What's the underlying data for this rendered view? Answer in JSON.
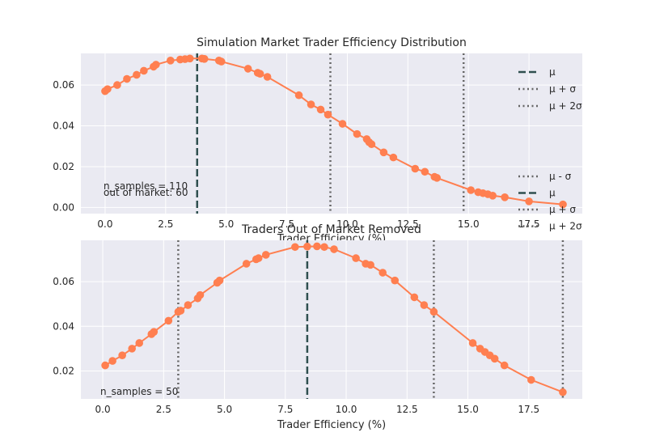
{
  "chart_data": [
    {
      "type": "line",
      "title": "Simulation Market Trader Efficiency Distribution",
      "xlabel": "Trader Efficiency (%)",
      "ylabel": "",
      "xlim": [
        -1.0,
        19.7
      ],
      "ylim": [
        -0.003,
        0.0755
      ],
      "xticks": [
        "0.0",
        "2.5",
        "5.0",
        "7.5",
        "10.0",
        "12.5",
        "15.0",
        "17.5"
      ],
      "xtick_values": [
        0,
        2.5,
        5,
        7.5,
        10,
        12.5,
        15,
        17.5
      ],
      "yticks": [
        "0.00",
        "0.02",
        "0.04",
        "0.06"
      ],
      "ytick_values": [
        0,
        0.02,
        0.04,
        0.06
      ],
      "grid": true,
      "line_color": "#ff7f50",
      "series": [
        {
          "x": [
            0.0,
            0.1,
            0.5,
            0.9,
            1.3,
            1.6,
            2.0,
            2.1,
            2.7,
            3.1,
            3.3,
            3.5,
            4.0,
            4.1,
            4.7,
            4.8,
            5.9,
            6.3,
            6.4,
            6.7,
            8.0,
            8.5,
            8.9,
            9.2,
            9.8,
            10.4,
            10.8,
            10.9,
            11.0,
            11.5,
            11.9,
            12.8,
            13.2,
            13.6,
            13.7,
            15.1,
            15.4,
            15.6,
            15.8,
            16.0,
            16.5,
            17.5,
            18.9
          ],
          "y": [
            0.057,
            0.058,
            0.06,
            0.063,
            0.065,
            0.067,
            0.069,
            0.07,
            0.072,
            0.0725,
            0.0727,
            0.073,
            0.073,
            0.0728,
            0.072,
            0.0715,
            0.068,
            0.066,
            0.0655,
            0.064,
            0.055,
            0.0505,
            0.048,
            0.0455,
            0.041,
            0.036,
            0.0335,
            0.032,
            0.031,
            0.027,
            0.0245,
            0.019,
            0.0175,
            0.015,
            0.0145,
            0.0085,
            0.0075,
            0.007,
            0.0065,
            0.0058,
            0.005,
            0.003,
            0.0015
          ]
        }
      ],
      "vlines": [
        {
          "x": 3.8,
          "style": "dashed",
          "color": "#2f4f4f"
        },
        {
          "x": 9.3,
          "style": "dotted",
          "color": "#666666"
        },
        {
          "x": 14.8,
          "style": "dotted",
          "color": "#666666"
        }
      ],
      "legend_placement": "right",
      "legend": [
        {
          "label": "μ",
          "style": "dashed",
          "color": "#2f4f4f"
        },
        {
          "label": "μ + σ",
          "style": "dotted",
          "color": "#666666"
        },
        {
          "label": "μ + 2σ",
          "style": "dotted",
          "color": "#666666"
        }
      ],
      "legend2": [
        {
          "label": "μ - σ",
          "style": "dotted",
          "color": "#666666"
        },
        {
          "label": "μ",
          "style": "dashed",
          "color": "#2f4f4f"
        },
        {
          "label": "μ + σ",
          "style": "dotted",
          "color": "#666666"
        },
        {
          "label": "μ + 2σ",
          "style": "dotted",
          "color": "#666666"
        }
      ],
      "annotations": [
        "n_samples = 110",
        "out of market: 60"
      ]
    },
    {
      "type": "line",
      "title": "Traders Out of Market Removed",
      "xlabel": "Trader Efficiency (%)",
      "ylabel": "",
      "xlim": [
        -0.9,
        19.7
      ],
      "ylim": [
        0.0075,
        0.0785
      ],
      "xticks": [
        "0.0",
        "2.5",
        "5.0",
        "7.5",
        "10.0",
        "12.5",
        "15.0",
        "17.5"
      ],
      "xtick_values": [
        0,
        2.5,
        5,
        7.5,
        10,
        12.5,
        15,
        17.5
      ],
      "yticks": [
        "0.02",
        "0.04",
        "0.06"
      ],
      "ytick_values": [
        0.02,
        0.04,
        0.06
      ],
      "grid": true,
      "line_color": "#ff7f50",
      "series": [
        {
          "x": [
            0.1,
            0.4,
            0.8,
            1.2,
            1.5,
            2.0,
            2.1,
            2.7,
            3.1,
            3.2,
            3.5,
            3.9,
            4.0,
            4.7,
            4.8,
            5.9,
            6.3,
            6.4,
            6.7,
            7.9,
            8.4,
            8.8,
            9.1,
            9.5,
            10.4,
            10.8,
            11.0,
            11.5,
            12.0,
            12.8,
            13.2,
            13.6,
            15.2,
            15.5,
            15.7,
            15.9,
            16.1,
            16.5,
            17.6,
            18.9
          ],
          "y": [
            0.0225,
            0.0245,
            0.027,
            0.03,
            0.0325,
            0.0365,
            0.0375,
            0.0425,
            0.0465,
            0.047,
            0.0495,
            0.0525,
            0.054,
            0.0595,
            0.0605,
            0.068,
            0.07,
            0.0705,
            0.072,
            0.0755,
            0.0757,
            0.0758,
            0.0755,
            0.0745,
            0.0705,
            0.068,
            0.0675,
            0.064,
            0.0605,
            0.053,
            0.0495,
            0.0465,
            0.0325,
            0.03,
            0.0285,
            0.027,
            0.0255,
            0.0225,
            0.016,
            0.0105
          ]
        }
      ],
      "vlines": [
        {
          "x": 3.1,
          "style": "dotted",
          "color": "#666666"
        },
        {
          "x": 8.4,
          "style": "dashed",
          "color": "#2f4f4f"
        },
        {
          "x": 13.6,
          "style": "dotted",
          "color": "#666666"
        },
        {
          "x": 18.9,
          "style": "dotted",
          "color": "#666666"
        }
      ],
      "annotations": [
        "n_samples = 50"
      ]
    }
  ]
}
